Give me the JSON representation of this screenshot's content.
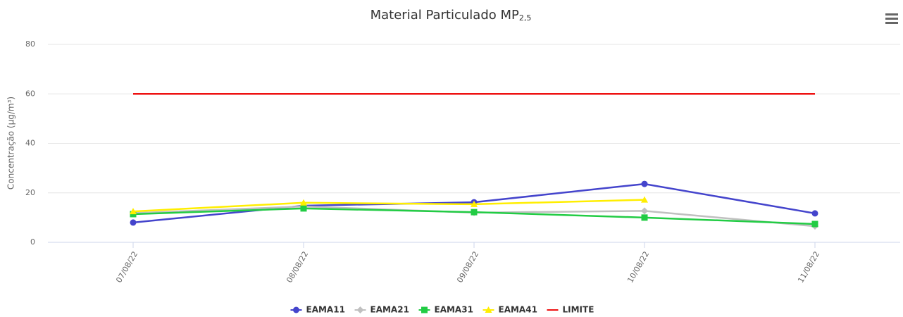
{
  "chart_data": {
    "type": "line",
    "title": "Material Particulado MP",
    "title_subscript": "2,5",
    "y_label": "Concentração (µg/m³)",
    "categories": [
      "07/08/22",
      "08/08/22",
      "09/08/22",
      "10/08/22",
      "11/08/22"
    ],
    "series": [
      {
        "name": "EAMA11",
        "color": "#4444cc",
        "marker": "circle",
        "values": [
          8.0,
          14.8,
          16.2,
          23.6,
          11.7
        ]
      },
      {
        "name": "EAMA21",
        "color": "#c0c0c0",
        "marker": "diamond",
        "values": [
          11.8,
          14.5,
          12.0,
          12.7,
          6.5
        ]
      },
      {
        "name": "EAMA31",
        "color": "#22cc44",
        "marker": "square",
        "values": [
          11.4,
          13.7,
          12.2,
          10.0,
          7.4
        ]
      },
      {
        "name": "EAMA41",
        "color": "#ffee00",
        "marker": "triangle",
        "values": [
          12.5,
          16.0,
          15.4,
          17.2,
          null
        ]
      },
      {
        "name": "LIMITE",
        "color": "#ee1111",
        "marker": "none",
        "values": [
          60,
          60,
          60,
          60,
          60
        ]
      }
    ],
    "ylim": [
      0,
      80
    ],
    "yticks": [
      0,
      20,
      40,
      60,
      80
    ],
    "grid": true,
    "legend": "bottom"
  }
}
